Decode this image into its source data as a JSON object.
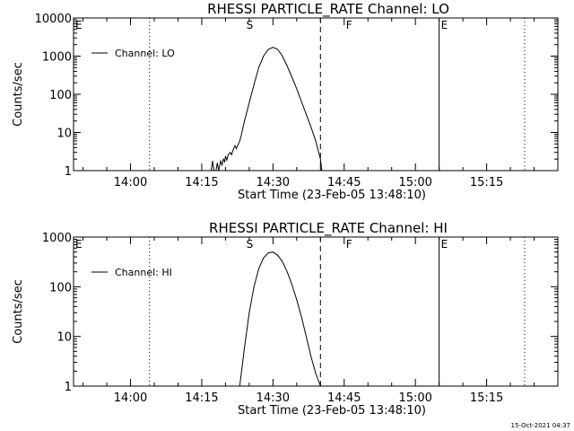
{
  "timestamp": "15-Oct-2021 04:37",
  "chart_data": [
    {
      "type": "line",
      "title": "RHESSI PARTICLE_RATE Channel: LO",
      "xlabel": "Start Time (23-Feb-05 13:48:10)",
      "ylabel": "Counts/sec",
      "yscale": "log",
      "ylim": [
        1,
        10000
      ],
      "xlim": [
        "13:48",
        "15:30"
      ],
      "x_ticks": [
        "14:00",
        "14:15",
        "14:30",
        "14:45",
        "15:00",
        "15:15"
      ],
      "y_ticks": [
        "1",
        "10",
        "100",
        "1000",
        "10000"
      ],
      "legend": {
        "position": "top-left",
        "entries": [
          "Channel: LO"
        ]
      },
      "markers": [
        {
          "label": "E",
          "time": "13:48",
          "style": "dotted"
        },
        {
          "label": "",
          "time": "14:04",
          "style": "dotted"
        },
        {
          "label": "S",
          "time": "14:24",
          "style": "dashed"
        },
        {
          "label": "",
          "time": "14:40",
          "style": "dashed"
        },
        {
          "label": "F",
          "time": "14:45",
          "style": "solid"
        },
        {
          "label": "",
          "time": "15:05",
          "style": "solid"
        },
        {
          "label": "E",
          "time": "15:05",
          "style": "dotted"
        },
        {
          "label": "",
          "time": "15:23",
          "style": "dotted"
        }
      ],
      "series": [
        {
          "name": "Channel: LO",
          "x": [
            "14:17",
            "14:17",
            "14:17",
            "14:18",
            "14:18",
            "14:18",
            "14:19",
            "14:19",
            "14:19",
            "14:19",
            "14:20",
            "14:20",
            "14:20",
            "14:21",
            "14:21",
            "14:21",
            "14:22",
            "14:22",
            "14:23",
            "14:23",
            "14:24",
            "14:25",
            "14:26",
            "14:27",
            "14:28",
            "14:29",
            "14:30",
            "14:31",
            "14:32",
            "14:33",
            "14:34",
            "14:35",
            "14:36",
            "14:37",
            "14:38",
            "14:39",
            "14:40",
            "14:40"
          ],
          "y": [
            1,
            1.8,
            1,
            1,
            1.6,
            1,
            1.8,
            1.4,
            2,
            1.7,
            2.4,
            1.9,
            2.6,
            3,
            2.6,
            3.4,
            4.5,
            3.8,
            6,
            8,
            20,
            60,
            180,
            500,
            1000,
            1500,
            1700,
            1500,
            1000,
            550,
            280,
            140,
            65,
            30,
            14,
            6,
            2,
            1
          ]
        }
      ]
    },
    {
      "type": "line",
      "title": "RHESSI PARTICLE_RATE Channel: HI",
      "xlabel": "Start Time (23-Feb-05 13:48:10)",
      "ylabel": "Counts/sec",
      "yscale": "log",
      "ylim": [
        1,
        1000
      ],
      "xlim": [
        "13:48",
        "15:30"
      ],
      "x_ticks": [
        "14:00",
        "14:15",
        "14:30",
        "14:45",
        "15:00",
        "15:15"
      ],
      "y_ticks": [
        "1",
        "10",
        "100",
        "1000"
      ],
      "legend": {
        "position": "top-left",
        "entries": [
          "Channel: HI"
        ]
      },
      "markers": [
        {
          "label": "E",
          "time": "13:48",
          "style": "dotted"
        },
        {
          "label": "",
          "time": "14:04",
          "style": "dotted"
        },
        {
          "label": "S",
          "time": "14:24",
          "style": "dashed"
        },
        {
          "label": "",
          "time": "14:40",
          "style": "dashed"
        },
        {
          "label": "F",
          "time": "14:45",
          "style": "solid"
        },
        {
          "label": "",
          "time": "15:05",
          "style": "solid"
        },
        {
          "label": "E",
          "time": "15:05",
          "style": "dotted"
        },
        {
          "label": "",
          "time": "15:23",
          "style": "dotted"
        }
      ],
      "series": [
        {
          "name": "Channel: HI",
          "x": [
            "14:23",
            "14:24",
            "14:25",
            "14:26",
            "14:27",
            "14:28",
            "14:29",
            "14:30",
            "14:31",
            "14:32",
            "14:33",
            "14:34",
            "14:35",
            "14:36",
            "14:37",
            "14:38",
            "14:39",
            "14:40"
          ],
          "y": [
            1,
            6,
            30,
            100,
            230,
            380,
            480,
            500,
            430,
            320,
            200,
            110,
            55,
            25,
            10,
            4,
            1.8,
            1
          ]
        }
      ]
    }
  ]
}
